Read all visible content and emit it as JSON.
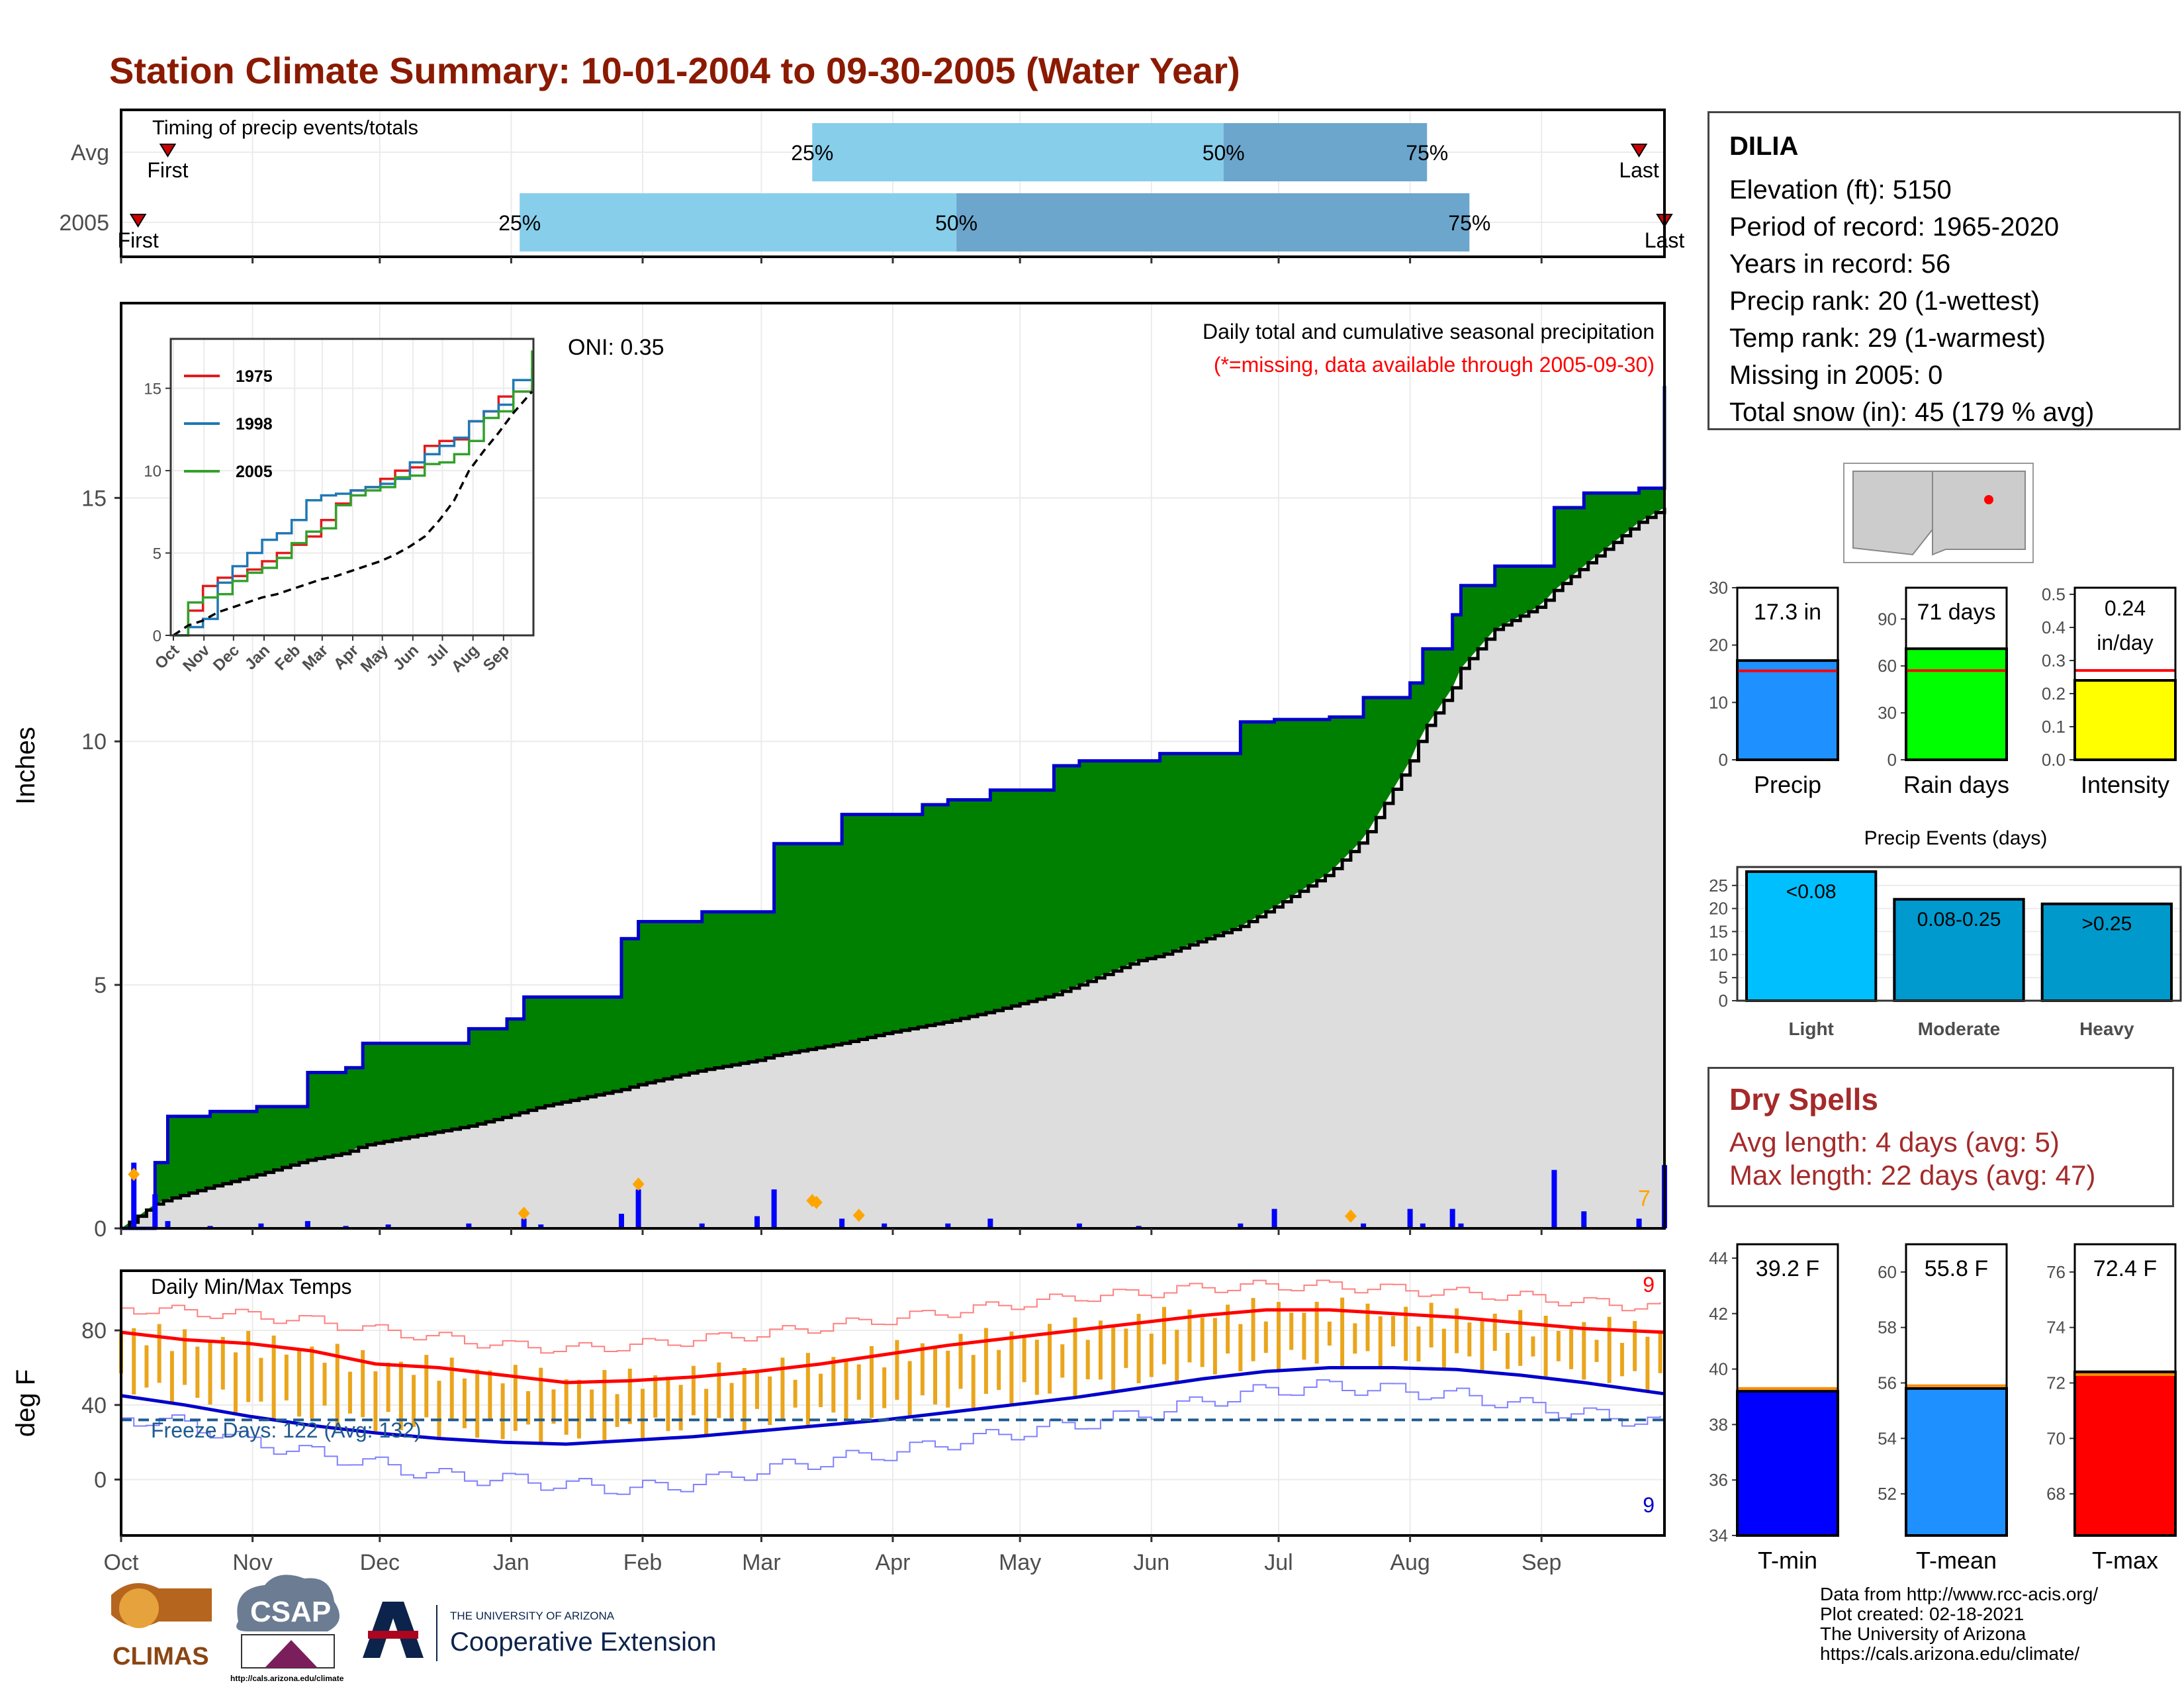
{
  "title": "Station Climate Summary: 10-01-2004 to 09-30-2005 (Water Year)",
  "colors": {
    "title": "#8b1a00",
    "cumulative_fill": "#008000",
    "cumulative_line": "#0000cc",
    "avg_fill": "#dddddd",
    "daily_bar": "#0000ff",
    "temp_bar": "#eaa51c",
    "tmax_line": "#ff0000",
    "tmin_line": "#0000cc",
    "timing_light": "#87ceeb",
    "timing_dark": "#6ca6cd",
    "dry_spell_text": "#a52a2a"
  },
  "timing_panel": {
    "label": "Timing of precip events/totals",
    "rows": [
      {
        "name": "Avg",
        "first_day": 11,
        "last_day": 358,
        "p25_day": 163,
        "p50_day": 260,
        "p75_day": 308,
        "first_label": "First",
        "last_label": "Last",
        "p25_label": "25%",
        "p50_label": "50%",
        "p75_label": "75%"
      },
      {
        "name": "2005",
        "first_day": 4,
        "last_day": 364,
        "p25_day": 94,
        "p50_day": 197,
        "p75_day": 318,
        "first_label": "First",
        "last_label": "Last",
        "p25_label": "25%",
        "p50_label": "50%",
        "p75_label": "75%"
      }
    ]
  },
  "main_panel": {
    "ylabel": "Inches",
    "oni": "ONI: 0.35",
    "caption": "Daily total and cumulative seasonal precipitation",
    "caption2": "(*=missing, data available through 2005-09-30)",
    "corner_value": "7"
  },
  "temp_panel": {
    "ylabel": "deg F",
    "label": "Daily Min/Max Temps",
    "freeze_text": "Freeze Days: 122 (Avg: 132)",
    "top_count": "9",
    "bottom_count": "9"
  },
  "x_months": [
    "Oct",
    "Nov",
    "Dec",
    "Jan",
    "Feb",
    "Mar",
    "Apr",
    "May",
    "Jun",
    "Jul",
    "Aug",
    "Sep"
  ],
  "inset": {
    "legend": [
      "1975",
      "1998",
      "2005"
    ],
    "xlabels": [
      "Oct",
      "Nov",
      "Dec",
      "Jan",
      "Feb",
      "Mar",
      "Apr",
      "May",
      "Jun",
      "Jul",
      "Aug",
      "Sep"
    ]
  },
  "station": {
    "name": "DILIA",
    "lines": [
      "Elevation (ft): 5150",
      "Period of record: 1965-2020",
      "Years in record: 56",
      "Precip rank: 20 (1-wettest)",
      "Temp rank: 29 (1-warmest)",
      "Missing in 2005: 0",
      "Total snow (in): 45 (179 % avg)"
    ]
  },
  "dry_spells": {
    "title": "Dry Spells",
    "avg_line": "Avg length: 4 days (avg: 5)",
    "max_line": "Max length: 22 days (avg: 47)"
  },
  "events_title": "Precip Events (days)",
  "credits": [
    "Data from http://www.rcc-acis.org/",
    "Plot created: 02-18-2021",
    "The University of Arizona",
    "https://cals.arizona.edu/climate/"
  ],
  "logos": {
    "climas": "CLIMAS",
    "csap": "CSAP",
    "csap_url": "http://cals.arizona.edu/climate",
    "ua_small": "THE UNIVERSITY OF ARIZONA",
    "ua_big": "Cooperative Extension"
  },
  "chart_data": [
    {
      "name": "precip-timing",
      "type": "bar",
      "categories": [
        "Avg",
        "2005"
      ],
      "series": [
        {
          "name": "First",
          "values": [
            11,
            4
          ]
        },
        {
          "name": "25%",
          "values": [
            163,
            94
          ]
        },
        {
          "name": "50%",
          "values": [
            260,
            197
          ]
        },
        {
          "name": "75%",
          "values": [
            308,
            318
          ]
        },
        {
          "name": "Last",
          "values": [
            358,
            364
          ]
        }
      ]
    },
    {
      "name": "cumulative-precip",
      "type": "area",
      "ylabel": "Inches",
      "ylim": [
        0,
        19
      ],
      "yticks": [
        0,
        5,
        10,
        15
      ],
      "x_day": [
        0,
        8,
        11,
        21,
        32,
        44,
        53,
        57,
        63,
        82,
        91,
        95,
        99,
        118,
        122,
        137,
        150,
        154,
        170,
        180,
        189,
        195,
        205,
        220,
        226,
        240,
        245,
        264,
        272,
        285,
        293,
        304,
        307,
        314,
        316,
        324,
        335,
        338,
        345,
        358,
        364
      ],
      "series": [
        {
          "name": "2005",
          "values": [
            0,
            1.35,
            2.3,
            2.4,
            2.5,
            3.2,
            3.3,
            3.8,
            3.8,
            4.1,
            4.3,
            4.75,
            4.75,
            5.95,
            6.3,
            6.5,
            6.5,
            7.9,
            8.5,
            8.5,
            8.7,
            8.8,
            9.0,
            9.5,
            9.6,
            9.6,
            9.75,
            10.4,
            10.45,
            10.5,
            10.9,
            11.2,
            11.9,
            12.6,
            13.2,
            13.6,
            13.6,
            14.8,
            15.1,
            15.2,
            17.3
          ]
        },
        {
          "name": "Avg",
          "values": [
            0,
            0.5,
            0.6,
            0.85,
            1.1,
            1.4,
            1.55,
            1.7,
            1.8,
            2.1,
            2.3,
            2.4,
            2.5,
            2.85,
            2.95,
            3.25,
            3.45,
            3.55,
            3.8,
            4.0,
            4.15,
            4.25,
            4.45,
            4.8,
            5.0,
            5.5,
            5.6,
            6.2,
            6.6,
            7.3,
            8.0,
            9.6,
            10.2,
            11.1,
            11.5,
            12.3,
            12.8,
            13.1,
            13.6,
            14.5,
            14.8
          ]
        }
      ],
      "daily_precip": {
        "x_day": [
          3,
          8,
          11,
          21,
          33,
          44,
          53,
          63,
          82,
          95,
          99,
          118,
          122,
          137,
          150,
          154,
          170,
          180,
          195,
          205,
          226,
          240,
          264,
          272,
          293,
          304,
          307,
          314,
          316,
          338,
          345,
          358,
          364
        ],
        "values": [
          1.35,
          0.7,
          0.15,
          0.05,
          0.1,
          0.15,
          0.05,
          0.08,
          0.1,
          0.2,
          0.08,
          0.3,
          0.8,
          0.1,
          0.25,
          0.8,
          0.2,
          0.1,
          0.1,
          0.2,
          0.1,
          0.05,
          0.1,
          0.4,
          0.1,
          0.4,
          0.1,
          0.4,
          0.1,
          1.2,
          0.35,
          0.2,
          1.3
        ]
      },
      "snow_markers_day": [
        3,
        95,
        122,
        163,
        164,
        174,
        290
      ]
    },
    {
      "name": "inset-cumulative-comparison",
      "type": "line",
      "ylim": [
        0,
        18
      ],
      "yticks": [
        0,
        5,
        10,
        15
      ],
      "x_day": [
        0,
        15,
        30,
        45,
        60,
        75,
        90,
        105,
        120,
        135,
        150,
        165,
        180,
        195,
        210,
        225,
        240,
        255,
        270,
        285,
        300,
        315,
        330,
        345,
        364
      ],
      "series": [
        {
          "name": "1975",
          "values": [
            0,
            1.5,
            3.0,
            3.5,
            3.6,
            4.0,
            4.5,
            5.0,
            5.5,
            6.0,
            7.0,
            8.0,
            8.8,
            9.0,
            9.5,
            10.0,
            10.2,
            11.5,
            11.8,
            11.9,
            13.0,
            13.6,
            14.5,
            14.8,
            15.2
          ]
        },
        {
          "name": "1998",
          "values": [
            0,
            0.5,
            1.0,
            3.2,
            4.2,
            5.0,
            5.8,
            6.2,
            7.0,
            8.2,
            8.5,
            8.6,
            8.8,
            9.0,
            9.2,
            9.5,
            10.5,
            11.0,
            11.5,
            12.0,
            13.0,
            13.6,
            14.0,
            15.5,
            16.2
          ]
        },
        {
          "name": "2005",
          "values": [
            0,
            2.0,
            2.3,
            2.5,
            3.3,
            3.8,
            4.1,
            4.7,
            5.6,
            6.3,
            6.5,
            7.9,
            8.5,
            8.8,
            9.0,
            9.6,
            9.7,
            10.4,
            10.5,
            11.0,
            11.8,
            13.2,
            13.6,
            14.8,
            17.3
          ]
        },
        {
          "name": "Avg",
          "values": [
            0,
            0.6,
            0.9,
            1.4,
            1.7,
            2.0,
            2.3,
            2.5,
            2.8,
            3.1,
            3.4,
            3.6,
            3.9,
            4.2,
            4.5,
            4.9,
            5.4,
            6.0,
            7.0,
            8.2,
            10.0,
            11.2,
            12.3,
            13.5,
            14.8
          ]
        }
      ]
    },
    {
      "name": "daily-temps",
      "type": "line",
      "ylabel": "deg F",
      "ylim": [
        -30,
        112
      ],
      "yticks": [
        0,
        40,
        80
      ],
      "x_day": [
        0,
        15,
        30,
        45,
        60,
        75,
        90,
        105,
        120,
        135,
        150,
        165,
        180,
        195,
        210,
        225,
        240,
        255,
        270,
        285,
        300,
        315,
        330,
        345,
        364
      ],
      "series": [
        {
          "name": "Tmax avg",
          "values": [
            79,
            75,
            73,
            69,
            62,
            60,
            56,
            52,
            53,
            55,
            58,
            62,
            67,
            72,
            76,
            80,
            84,
            88,
            91,
            91,
            89,
            87,
            84,
            81,
            79
          ]
        },
        {
          "name": "Tmin avg",
          "values": [
            45,
            40,
            34,
            29,
            25,
            22,
            20,
            19,
            21,
            23,
            26,
            29,
            32,
            36,
            40,
            44,
            49,
            54,
            58,
            60,
            60,
            59,
            56,
            52,
            46
          ]
        },
        {
          "name": "Record max",
          "values": [
            92,
            90,
            88,
            85,
            80,
            76,
            72,
            70,
            72,
            75,
            78,
            82,
            86,
            90,
            94,
            98,
            100,
            103,
            104,
            104,
            102,
            100,
            98,
            95,
            92
          ]
        },
        {
          "name": "Record min",
          "values": [
            33,
            30,
            20,
            14,
            8,
            2,
            0,
            -3,
            -5,
            -2,
            5,
            10,
            14,
            20,
            25,
            30,
            35,
            42,
            48,
            50,
            48,
            45,
            40,
            35,
            30
          ]
        }
      ],
      "freeze_line": 32,
      "freeze_days": 122,
      "freeze_days_avg": 132,
      "record_high_days": 9,
      "record_low_days": 9
    },
    {
      "name": "annual-precip-stats",
      "type": "bar",
      "categories": [
        "Precip",
        "Rain days",
        "Intensity"
      ],
      "values": [
        17.3,
        71,
        0.24
      ],
      "averages": [
        15.5,
        57,
        0.27
      ],
      "labels": [
        "17.3 in",
        "71 days",
        "0.24 in/day"
      ],
      "ylims": [
        [
          0,
          30
        ],
        [
          0,
          110
        ],
        [
          0,
          0.52
        ]
      ],
      "yticks": [
        [
          0,
          10,
          20,
          30
        ],
        [
          0,
          30,
          60,
          90
        ],
        [
          0.0,
          0.1,
          0.2,
          0.3,
          0.4,
          0.5
        ]
      ]
    },
    {
      "name": "precip-events",
      "type": "bar",
      "title": "Precip Events (days)",
      "categories": [
        "Light",
        "Moderate",
        "Heavy"
      ],
      "bar_labels": [
        "<0.08",
        "0.08-0.25",
        ">0.25"
      ],
      "values": [
        28,
        22,
        21
      ],
      "ylim": [
        0,
        29
      ],
      "yticks": [
        0,
        5,
        10,
        15,
        20,
        25
      ]
    },
    {
      "name": "mean-temps",
      "type": "bar",
      "categories": [
        "T-min",
        "T-mean",
        "T-max"
      ],
      "values": [
        39.2,
        55.8,
        72.4
      ],
      "averages": [
        39.3,
        55.9,
        72.3
      ],
      "labels": [
        "39.2 F",
        "55.8 F",
        "72.4 F"
      ],
      "ylims": [
        [
          34,
          44.5
        ],
        [
          50.5,
          61
        ],
        [
          66.5,
          77
        ]
      ],
      "yticks": [
        [
          34,
          36,
          38,
          40,
          42,
          44
        ],
        [
          52,
          54,
          56,
          58,
          60
        ],
        [
          68,
          70,
          72,
          74,
          76
        ]
      ]
    }
  ]
}
